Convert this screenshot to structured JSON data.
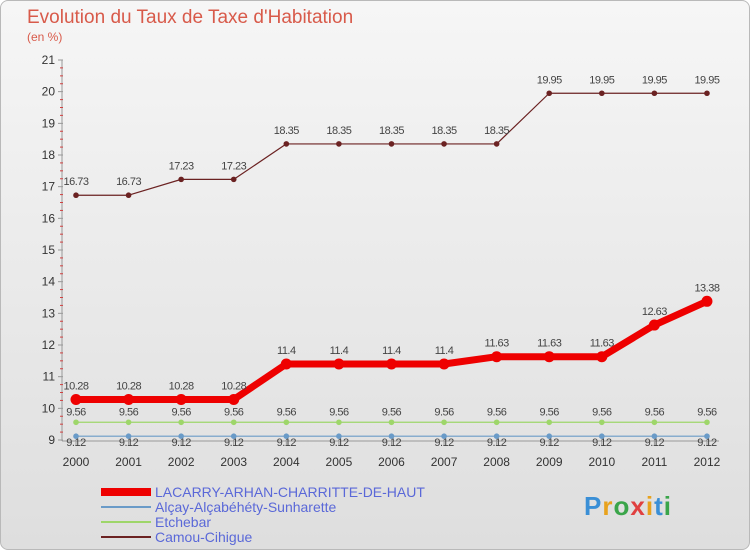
{
  "title": "Evolution du Taux de Taxe d'Habitation",
  "unit": "(en %)",
  "logo": "Proxiti",
  "chart_data": {
    "type": "line",
    "x": [
      2000,
      2001,
      2002,
      2003,
      2004,
      2005,
      2006,
      2007,
      2008,
      2009,
      2010,
      2011,
      2012
    ],
    "ylim": [
      9,
      21
    ],
    "yticks": [
      9,
      10,
      11,
      12,
      13,
      14,
      15,
      16,
      17,
      18,
      19,
      20,
      21
    ],
    "grid": false,
    "legend": "bottom-left",
    "series": [
      {
        "name": "LACARRY-ARHAN-CHARRITTE-DE-HAUT",
        "color": "#ee0000",
        "labels": [
          "10.28",
          "10.28",
          "10.28",
          "10.28",
          "11.4",
          "11.4",
          "11.4",
          "11.4",
          "11.63",
          "11.63",
          "11.63",
          "12.63",
          "13.38"
        ],
        "values": [
          10.28,
          10.28,
          10.28,
          10.28,
          11.4,
          11.4,
          11.4,
          11.4,
          11.63,
          11.63,
          11.63,
          12.63,
          13.38
        ]
      },
      {
        "name": "Alçay-Alçabéhéty-Sunharette",
        "color": "#6a9bc8",
        "labels": [
          "9.12",
          "9.12",
          "9.12",
          "9.12",
          "9.12",
          "9.12",
          "9.12",
          "9.12",
          "9.12",
          "9.12",
          "9.12",
          "9.12",
          "9.12"
        ],
        "values": [
          9.12,
          9.12,
          9.12,
          9.12,
          9.12,
          9.12,
          9.12,
          9.12,
          9.12,
          9.12,
          9.12,
          9.12,
          9.12
        ]
      },
      {
        "name": "Etchebar",
        "color": "#9ed66a",
        "labels": [
          "9.56",
          "9.56",
          "9.56",
          "9.56",
          "9.56",
          "9.56",
          "9.56",
          "9.56",
          "9.56",
          "9.56",
          "9.56",
          "9.56",
          "9.56"
        ],
        "values": [
          9.56,
          9.56,
          9.56,
          9.56,
          9.56,
          9.56,
          9.56,
          9.56,
          9.56,
          9.56,
          9.56,
          9.56,
          9.56
        ]
      },
      {
        "name": "Camou-Cihigue",
        "color": "#6b2222",
        "labels": [
          "16.73",
          "16.73",
          "17.23",
          "17.23",
          "18.35",
          "18.35",
          "18.35",
          "18.35",
          "18.35",
          "19.95",
          "19.95",
          "19.95",
          "19.95"
        ],
        "values": [
          16.73,
          16.73,
          17.23,
          17.23,
          18.35,
          18.35,
          18.35,
          18.35,
          18.35,
          19.95,
          19.95,
          19.95,
          19.95
        ]
      }
    ]
  }
}
